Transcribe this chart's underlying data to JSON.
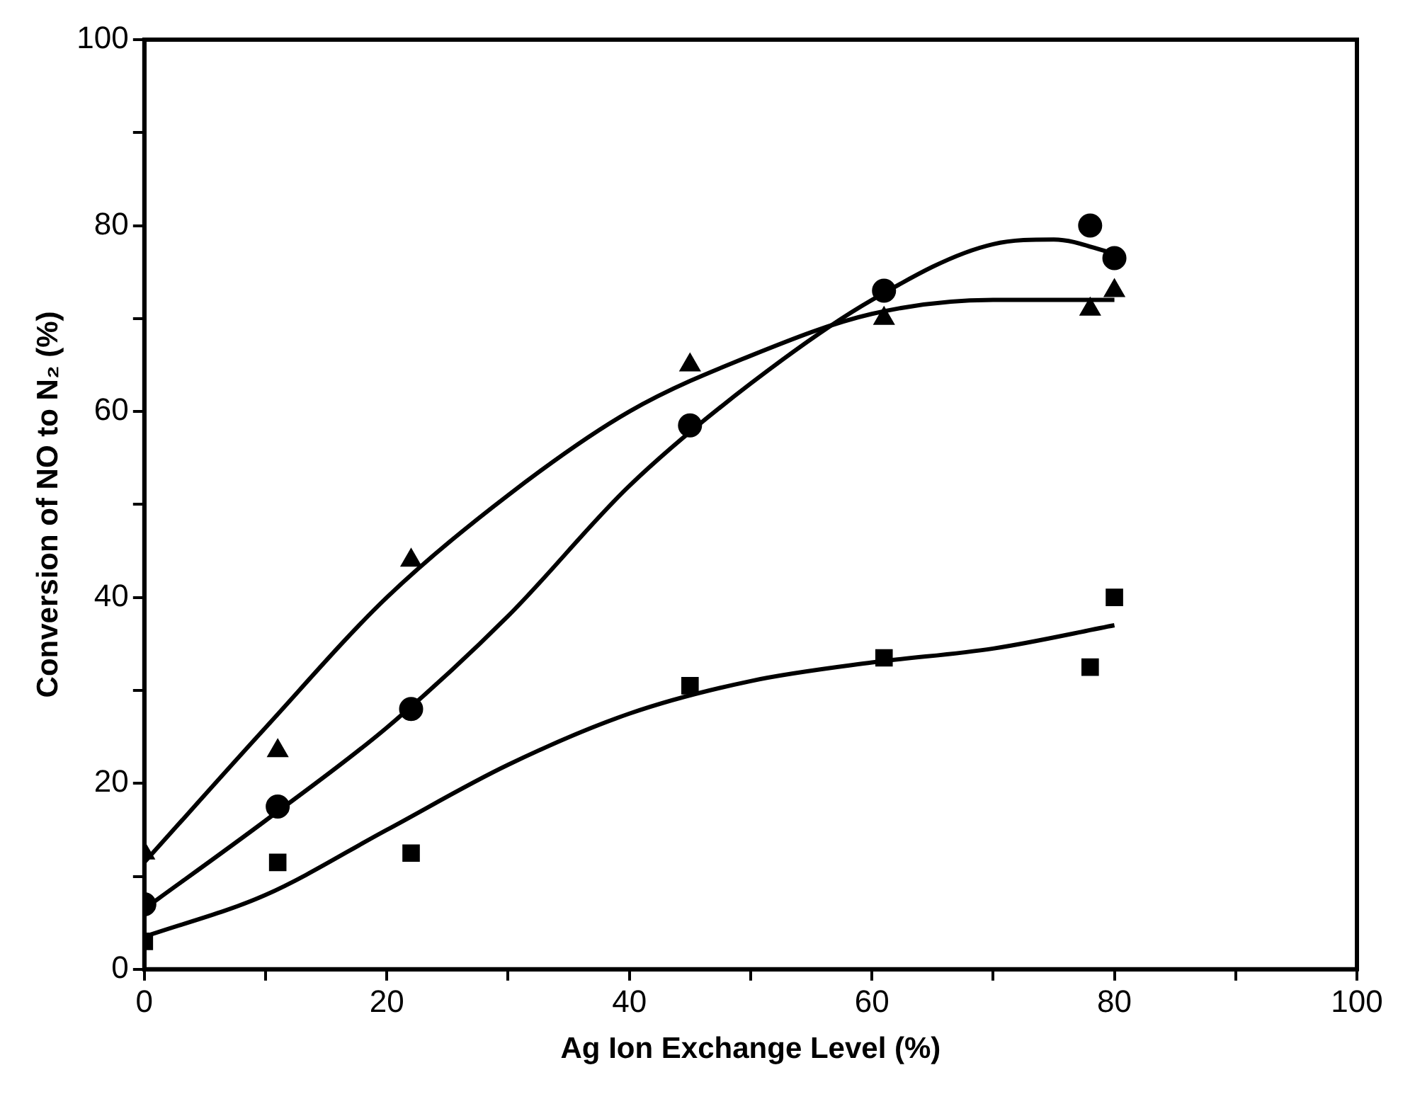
{
  "chart_data": {
    "type": "scatter",
    "xlabel": "Ag Ion Exchange Level (%)",
    "ylabel": "Conversion of NO to N₂ (%)",
    "xlim": [
      0,
      100
    ],
    "ylim": [
      0,
      100
    ],
    "xticks": [
      0,
      {
        "value": 10,
        "label": null
      },
      20,
      {
        "value": 30,
        "label": null
      },
      40,
      {
        "value": 50,
        "label": null
      },
      60,
      {
        "value": 70,
        "label": null
      },
      80,
      {
        "value": 90,
        "label": null
      },
      100
    ],
    "yticks": [
      0,
      {
        "value": 10,
        "label": null
      },
      20,
      {
        "value": 30,
        "label": null
      },
      40,
      {
        "value": 50,
        "label": null
      },
      60,
      {
        "value": 70,
        "label": null
      },
      80,
      {
        "value": 90,
        "label": null
      },
      100
    ],
    "grid": false,
    "legend": false,
    "series": [
      {
        "type": "scatter",
        "marker": "circle",
        "color": "#000000",
        "x": [
          0,
          11,
          22,
          45,
          61,
          78,
          80
        ],
        "values": [
          7,
          17.5,
          28,
          58.5,
          73,
          80,
          76.5
        ]
      },
      {
        "type": "scatter",
        "marker": "triangle",
        "color": "#000000",
        "x": [
          0,
          11,
          22,
          45,
          61,
          78,
          80
        ],
        "values": [
          12.5,
          23.5,
          44,
          65,
          70,
          71,
          73
        ]
      },
      {
        "type": "scatter",
        "marker": "square",
        "color": "#000000",
        "x": [
          0,
          11,
          22,
          45,
          61,
          78,
          80
        ],
        "values": [
          3,
          11.5,
          12.5,
          30.5,
          33.5,
          32.5,
          40
        ]
      },
      {
        "type": "line",
        "marker": "none",
        "color": "#000000",
        "x": [
          0,
          10,
          20,
          30,
          40,
          50,
          60,
          70,
          75,
          80
        ],
        "values": [
          6.5,
          16,
          26,
          38,
          52,
          63,
          72,
          78,
          78.5,
          77
        ]
      },
      {
        "type": "line",
        "marker": "none",
        "color": "#000000",
        "x": [
          0,
          10,
          20,
          30,
          40,
          50,
          60,
          70,
          80
        ],
        "values": [
          11.5,
          26,
          40,
          51,
          60,
          66,
          70.5,
          72,
          72
        ]
      },
      {
        "type": "line",
        "marker": "none",
        "color": "#000000",
        "x": [
          0,
          10,
          20,
          30,
          40,
          50,
          60,
          70,
          80
        ],
        "values": [
          3.5,
          8,
          15,
          22,
          27.5,
          31,
          33,
          34.5,
          37
        ]
      }
    ]
  }
}
